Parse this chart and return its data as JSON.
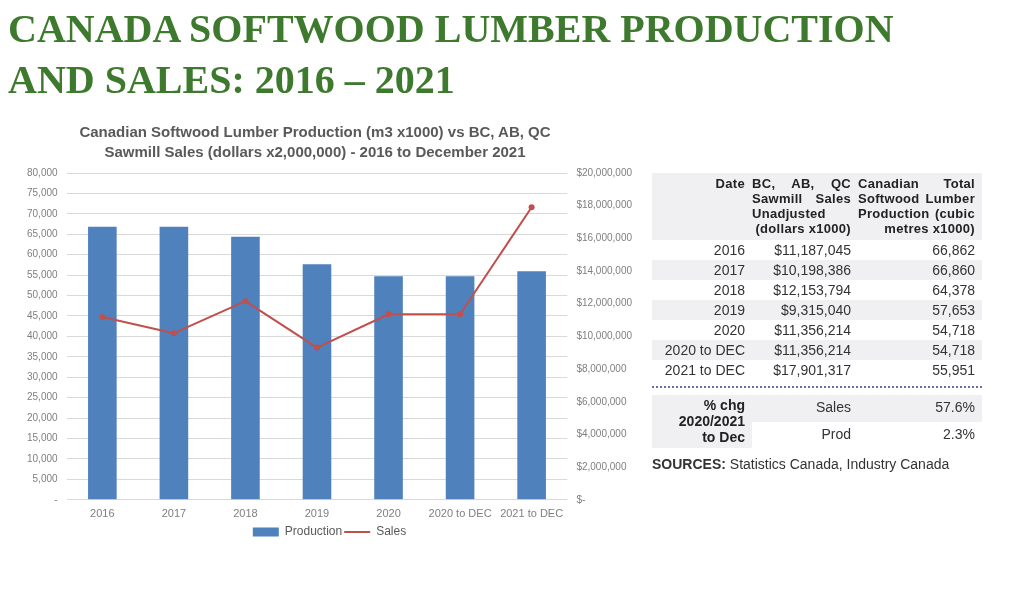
{
  "chart_data": {
    "type": "bar",
    "title": "CANADA SOFTWOOD LUMBER PRODUCTION AND SALES: 2016 – 2021",
    "subtitle": "Canadian Softwood Lumber Production (m3 x1000) vs BC, AB, QC Sawmill Sales (dollars x2,000,000) - 2016 to December 2021",
    "categories": [
      "2016",
      "2017",
      "2018",
      "2019",
      "2020",
      "2020 to DEC",
      "2021 to DEC"
    ],
    "series": [
      {
        "name": "Production",
        "color": "#4f81bd",
        "values": [
          66862,
          66860,
          64378,
          57653,
          54718,
          54718,
          55951
        ]
      },
      {
        "name": "Sales",
        "type": "line",
        "axis": "y2",
        "color": "#c0504d",
        "values": [
          11187045,
          10198386,
          12153794,
          9315040,
          11356214,
          11356214,
          17901317
        ]
      }
    ],
    "ylim": [
      0,
      80000
    ],
    "yticks": [
      {
        "value": 0,
        "label": "-"
      },
      {
        "value": 5000,
        "label": "5,000"
      },
      {
        "value": 10000,
        "label": "10,000"
      },
      {
        "value": 15000,
        "label": "15,000"
      },
      {
        "value": 20000,
        "label": "20,000"
      },
      {
        "value": 25000,
        "label": "25,000"
      },
      {
        "value": 30000,
        "label": "30,000"
      },
      {
        "value": 35000,
        "label": "35,000"
      },
      {
        "value": 40000,
        "label": "40,000"
      },
      {
        "value": 45000,
        "label": "45,000"
      },
      {
        "value": 50000,
        "label": "50,000"
      },
      {
        "value": 55000,
        "label": "55,000"
      },
      {
        "value": 60000,
        "label": "60,000"
      },
      {
        "value": 65000,
        "label": "65,000"
      },
      {
        "value": 70000,
        "label": "70,000"
      },
      {
        "value": 75000,
        "label": "75,000"
      },
      {
        "value": 80000,
        "label": "80,000"
      }
    ],
    "y2lim": [
      0,
      20000000
    ],
    "y2ticks": [
      {
        "value": 0,
        "label": "$-"
      },
      {
        "value": 2000000,
        "label": "$2,000,000"
      },
      {
        "value": 4000000,
        "label": "$4,000,000"
      },
      {
        "value": 6000000,
        "label": "$6,000,000"
      },
      {
        "value": 8000000,
        "label": "$8,000,000"
      },
      {
        "value": 10000000,
        "label": "$10,000,000"
      },
      {
        "value": 12000000,
        "label": "$12,000,000"
      },
      {
        "value": 14000000,
        "label": "$14,000,000"
      },
      {
        "value": 16000000,
        "label": "$16,000,000"
      },
      {
        "value": 18000000,
        "label": "$18,000,000"
      },
      {
        "value": 20000000,
        "label": "$20,000,000"
      }
    ],
    "grid": "y",
    "legend": "bottom",
    "marker": "circle",
    "line_style": "solid",
    "annotations": [
      "Date",
      "BC, AB, QC Sawmill Sales Unadjusted (dollars x1000)",
      "Canadian Total Softwood Lumber Production (cubic metres x1000)",
      "$11,187,045",
      "66,862",
      "$10,198,386",
      "66,860",
      "$12,153,794",
      "64,378",
      "$9,315,040",
      "57,653",
      "$11,356,214",
      "54,718",
      "$11,356,214",
      "54,718",
      "$17,901,317",
      "55,951",
      "% chg 2020/2021 to Dec",
      "Sales",
      "57.6%",
      "Prod",
      "2.3%",
      "SOURCES: Statistics Canada, Industry Canada"
    ]
  }
}
